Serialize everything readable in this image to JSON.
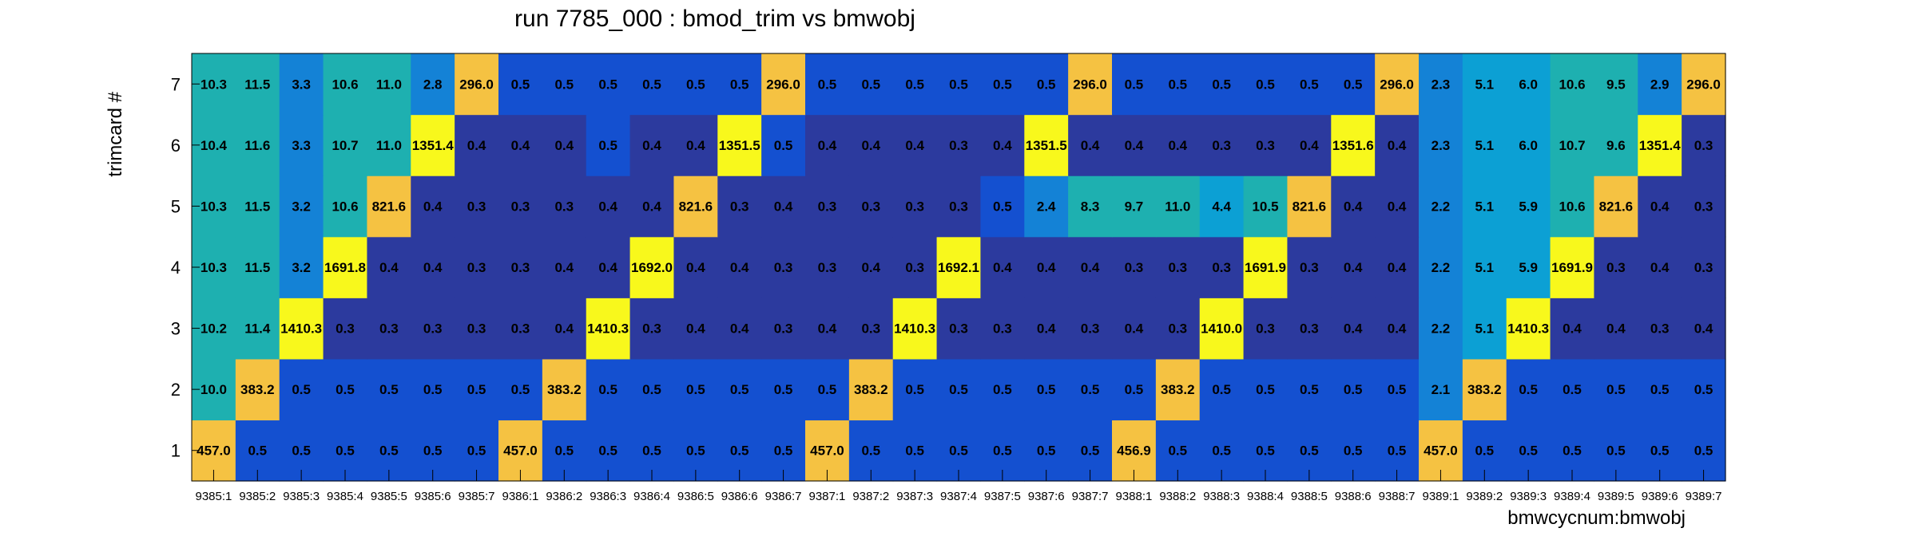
{
  "chart_data": {
    "type": "heatmap",
    "title": "run 7785_000 : bmod_trim vs bmwobj",
    "xlabel": "bmwcycnum:bmwobj",
    "ylabel": "trimcard #",
    "x_categories": [
      "9385:1",
      "9385:2",
      "9385:3",
      "9385:4",
      "9385:5",
      "9385:6",
      "9385:7",
      "9386:1",
      "9386:2",
      "9386:3",
      "9386:4",
      "9386:5",
      "9386:6",
      "9386:7",
      "9387:1",
      "9387:2",
      "9387:3",
      "9387:4",
      "9387:5",
      "9387:6",
      "9387:7",
      "9388:1",
      "9388:2",
      "9388:3",
      "9388:4",
      "9388:5",
      "9388:6",
      "9388:7",
      "9389:1",
      "9389:2",
      "9389:3",
      "9389:4",
      "9389:5",
      "9389:6",
      "9389:7"
    ],
    "y_categories": [
      "1",
      "2",
      "3",
      "4",
      "5",
      "6",
      "7"
    ],
    "values": [
      [
        "457.0",
        "0.5",
        "0.5",
        "0.5",
        "0.5",
        "0.5",
        "0.5",
        "457.0",
        "0.5",
        "0.5",
        "0.5",
        "0.5",
        "0.5",
        "0.5",
        "457.0",
        "0.5",
        "0.5",
        "0.5",
        "0.5",
        "0.5",
        "0.5",
        "456.9",
        "0.5",
        "0.5",
        "0.5",
        "0.5",
        "0.5",
        "0.5",
        "457.0",
        "0.5",
        "0.5",
        "0.5",
        "0.5",
        "0.5",
        "0.5"
      ],
      [
        "10.0",
        "383.2",
        "0.5",
        "0.5",
        "0.5",
        "0.5",
        "0.5",
        "0.5",
        "383.2",
        "0.5",
        "0.5",
        "0.5",
        "0.5",
        "0.5",
        "0.5",
        "383.2",
        "0.5",
        "0.5",
        "0.5",
        "0.5",
        "0.5",
        "0.5",
        "383.2",
        "0.5",
        "0.5",
        "0.5",
        "0.5",
        "0.5",
        "2.1",
        "383.2",
        "0.5",
        "0.5",
        "0.5",
        "0.5",
        "0.5"
      ],
      [
        "10.2",
        "11.4",
        "1410.3",
        "0.3",
        "0.3",
        "0.3",
        "0.3",
        "0.3",
        "0.4",
        "1410.3",
        "0.3",
        "0.4",
        "0.4",
        "0.3",
        "0.4",
        "0.3",
        "1410.3",
        "0.3",
        "0.3",
        "0.4",
        "0.3",
        "0.4",
        "0.3",
        "1410.0",
        "0.3",
        "0.3",
        "0.4",
        "0.4",
        "2.2",
        "5.1",
        "1410.3",
        "0.4",
        "0.4",
        "0.3",
        "0.4"
      ],
      [
        "10.3",
        "11.5",
        "3.2",
        "1691.8",
        "0.4",
        "0.4",
        "0.3",
        "0.3",
        "0.4",
        "0.4",
        "1692.0",
        "0.4",
        "0.4",
        "0.3",
        "0.3",
        "0.4",
        "0.3",
        "1692.1",
        "0.4",
        "0.4",
        "0.4",
        "0.3",
        "0.3",
        "0.3",
        "1691.9",
        "0.3",
        "0.4",
        "0.4",
        "2.2",
        "5.1",
        "5.9",
        "1691.9",
        "0.3",
        "0.4",
        "0.3"
      ],
      [
        "10.3",
        "11.5",
        "3.2",
        "10.6",
        "821.6",
        "0.4",
        "0.3",
        "0.3",
        "0.3",
        "0.4",
        "0.4",
        "821.6",
        "0.3",
        "0.4",
        "0.3",
        "0.3",
        "0.3",
        "0.3",
        "0.5",
        "2.4",
        "8.3",
        "9.7",
        "11.0",
        "4.4",
        "10.5",
        "821.6",
        "0.4",
        "0.4",
        "2.2",
        "5.1",
        "5.9",
        "10.6",
        "821.6",
        "0.4",
        "0.3"
      ],
      [
        "10.4",
        "11.6",
        "3.3",
        "10.7",
        "11.0",
        "1351.4",
        "0.4",
        "0.4",
        "0.4",
        "0.5",
        "0.4",
        "0.4",
        "1351.5",
        "0.5",
        "0.4",
        "0.4",
        "0.4",
        "0.3",
        "0.4",
        "1351.5",
        "0.4",
        "0.4",
        "0.4",
        "0.3",
        "0.3",
        "0.4",
        "1351.6",
        "0.4",
        "2.3",
        "5.1",
        "6.0",
        "10.7",
        "9.6",
        "1351.4",
        "0.3"
      ],
      [
        "10.3",
        "11.5",
        "3.3",
        "10.6",
        "11.0",
        "2.8",
        "296.0",
        "0.5",
        "0.5",
        "0.5",
        "0.5",
        "0.5",
        "0.5",
        "296.0",
        "0.5",
        "0.5",
        "0.5",
        "0.5",
        "0.5",
        "0.5",
        "296.0",
        "0.5",
        "0.5",
        "0.5",
        "0.5",
        "0.5",
        "0.5",
        "296.0",
        "2.3",
        "5.1",
        "6.0",
        "10.6",
        "9.5",
        "2.9",
        "296.0"
      ]
    ],
    "colors": {
      "very_low": "#2c3a9e",
      "low": "#1450d0",
      "mid_low": "#1482d6",
      "mid": "#0ca0d4",
      "mid_high": "#1eb0b0",
      "high": "#f5c242",
      "very_high": "#f8f81c"
    },
    "grid": false,
    "legend": "none"
  }
}
